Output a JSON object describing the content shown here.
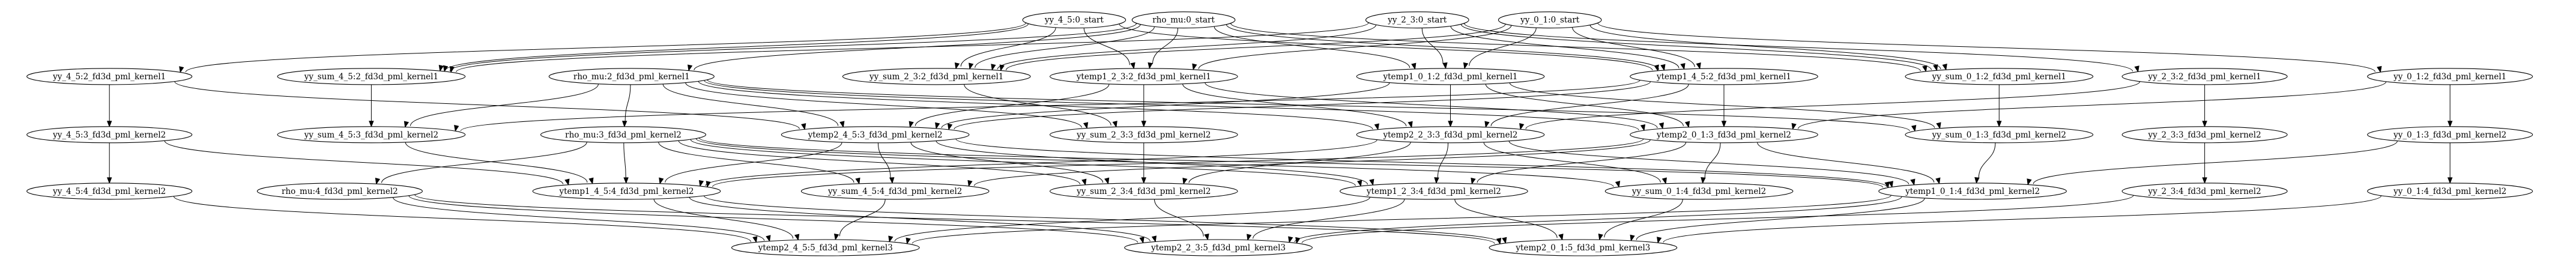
{
  "graph": {
    "nodes": [
      {
        "id": "yy_4_5_0_start",
        "label": "yy_4_5:0_start"
      },
      {
        "id": "rho_mu_0_start",
        "label": "rho_mu:0_start"
      },
      {
        "id": "yy_2_3_0_start",
        "label": "yy_2_3:0_start"
      },
      {
        "id": "yy_0_1_0_start",
        "label": "yy_0_1:0_start"
      },
      {
        "id": "yy_4_5_2",
        "label": "yy_4_5:2_fd3d_pml_kernel1"
      },
      {
        "id": "yy_sum_4_5_2",
        "label": "yy_sum_4_5:2_fd3d_pml_kernel1"
      },
      {
        "id": "rho_mu_2",
        "label": "rho_mu:2_fd3d_pml_kernel1"
      },
      {
        "id": "yy_sum_2_3_2",
        "label": "yy_sum_2_3:2_fd3d_pml_kernel1"
      },
      {
        "id": "ytemp1_2_3_2",
        "label": "ytemp1_2_3:2_fd3d_pml_kernel1"
      },
      {
        "id": "ytemp1_0_1_2",
        "label": "ytemp1_0_1:2_fd3d_pml_kernel1"
      },
      {
        "id": "ytemp1_4_5_2",
        "label": "ytemp1_4_5:2_fd3d_pml_kernel1"
      },
      {
        "id": "yy_sum_0_1_2",
        "label": "yy_sum_0_1:2_fd3d_pml_kernel1"
      },
      {
        "id": "yy_2_3_2",
        "label": "yy_2_3:2_fd3d_pml_kernel1"
      },
      {
        "id": "yy_0_1_2",
        "label": "yy_0_1:2_fd3d_pml_kernel1"
      },
      {
        "id": "yy_4_5_3",
        "label": "yy_4_5:3_fd3d_pml_kernel2"
      },
      {
        "id": "yy_sum_4_5_3",
        "label": "yy_sum_4_5:3_fd3d_pml_kernel2"
      },
      {
        "id": "rho_mu_3",
        "label": "rho_mu:3_fd3d_pml_kernel2"
      },
      {
        "id": "ytemp2_4_5_3",
        "label": "ytemp2_4_5:3_fd3d_pml_kernel2"
      },
      {
        "id": "yy_sum_2_3_3",
        "label": "yy_sum_2_3:3_fd3d_pml_kernel2"
      },
      {
        "id": "ytemp2_2_3_3",
        "label": "ytemp2_2_3:3_fd3d_pml_kernel2"
      },
      {
        "id": "ytemp2_0_1_3",
        "label": "ytemp2_0_1:3_fd3d_pml_kernel2"
      },
      {
        "id": "yy_sum_0_1_3",
        "label": "yy_sum_0_1:3_fd3d_pml_kernel2"
      },
      {
        "id": "yy_2_3_3",
        "label": "yy_2_3:3_fd3d_pml_kernel2"
      },
      {
        "id": "yy_0_1_3",
        "label": "yy_0_1:3_fd3d_pml_kernel2"
      },
      {
        "id": "yy_4_5_4",
        "label": "yy_4_5:4_fd3d_pml_kernel2"
      },
      {
        "id": "rho_mu_4",
        "label": "rho_mu:4_fd3d_pml_kernel2"
      },
      {
        "id": "ytemp1_4_5_4",
        "label": "ytemp1_4_5:4_fd3d_pml_kernel2"
      },
      {
        "id": "yy_sum_4_5_4",
        "label": "yy_sum_4_5:4_fd3d_pml_kernel2"
      },
      {
        "id": "yy_sum_2_3_4",
        "label": "yy_sum_2_3:4_fd3d_pml_kernel2"
      },
      {
        "id": "ytemp1_2_3_4",
        "label": "ytemp1_2_3:4_fd3d_pml_kernel2"
      },
      {
        "id": "yy_sum_0_1_4",
        "label": "yy_sum_0_1:4_fd3d_pml_kernel2"
      },
      {
        "id": "ytemp1_0_1_4",
        "label": "ytemp1_0_1:4_fd3d_pml_kernel2"
      },
      {
        "id": "yy_2_3_4",
        "label": "yy_2_3:4_fd3d_pml_kernel2"
      },
      {
        "id": "yy_0_1_4",
        "label": "yy_0_1:4_fd3d_pml_kernel2"
      },
      {
        "id": "ytemp2_4_5_5",
        "label": "ytemp2_4_5:5_fd3d_pml_kernel3"
      },
      {
        "id": "ytemp2_2_3_5",
        "label": "ytemp2_2_3:5_fd3d_pml_kernel3"
      },
      {
        "id": "ytemp2_0_1_5",
        "label": "ytemp2_0_1:5_fd3d_pml_kernel3"
      }
    ],
    "edges": [
      [
        "yy_4_5_0_start",
        "yy_4_5_2"
      ],
      [
        "yy_4_5_0_start",
        "yy_sum_4_5_2"
      ],
      [
        "yy_4_5_0_start",
        "ytemp1_4_5_2"
      ],
      [
        "yy_4_5_0_start",
        "ytemp1_2_3_2"
      ],
      [
        "yy_4_5_0_start",
        "yy_sum_2_3_2"
      ],
      [
        "rho_mu_0_start",
        "rho_mu_2"
      ],
      [
        "rho_mu_0_start",
        "yy_sum_4_5_2"
      ],
      [
        "rho_mu_0_start",
        "yy_sum_2_3_2"
      ],
      [
        "rho_mu_0_start",
        "ytemp1_2_3_2"
      ],
      [
        "rho_mu_0_start",
        "ytemp1_0_1_2"
      ],
      [
        "rho_mu_0_start",
        "ytemp1_4_5_2"
      ],
      [
        "rho_mu_0_start",
        "yy_sum_0_1_2"
      ],
      [
        "yy_2_3_0_start",
        "yy_sum_4_5_2"
      ],
      [
        "yy_2_3_0_start",
        "yy_sum_2_3_2"
      ],
      [
        "yy_2_3_0_start",
        "ytemp1_0_1_2"
      ],
      [
        "yy_2_3_0_start",
        "ytemp1_4_5_2"
      ],
      [
        "yy_2_3_0_start",
        "yy_sum_0_1_2"
      ],
      [
        "yy_2_3_0_start",
        "yy_2_3_2"
      ],
      [
        "yy_0_1_0_start",
        "yy_sum_2_3_2"
      ],
      [
        "yy_0_1_0_start",
        "ytemp1_2_3_2"
      ],
      [
        "yy_0_1_0_start",
        "ytemp1_0_1_2"
      ],
      [
        "yy_0_1_0_start",
        "ytemp1_4_5_2"
      ],
      [
        "yy_0_1_0_start",
        "yy_sum_0_1_2"
      ],
      [
        "yy_0_1_0_start",
        "yy_0_1_2"
      ],
      [
        "yy_4_5_2",
        "yy_4_5_3"
      ],
      [
        "yy_4_5_2",
        "ytemp2_4_5_3"
      ],
      [
        "yy_sum_4_5_2",
        "yy_sum_4_5_3"
      ],
      [
        "rho_mu_2",
        "rho_mu_3"
      ],
      [
        "rho_mu_2",
        "yy_sum_4_5_3"
      ],
      [
        "rho_mu_2",
        "ytemp2_4_5_3"
      ],
      [
        "rho_mu_2",
        "yy_sum_2_3_3"
      ],
      [
        "rho_mu_2",
        "ytemp2_2_3_3"
      ],
      [
        "rho_mu_2",
        "ytemp2_0_1_3"
      ],
      [
        "rho_mu_2",
        "yy_sum_0_1_3"
      ],
      [
        "yy_sum_2_3_2",
        "yy_sum_2_3_3"
      ],
      [
        "ytemp1_2_3_2",
        "ytemp2_4_5_3"
      ],
      [
        "ytemp1_2_3_2",
        "yy_sum_2_3_3"
      ],
      [
        "ytemp1_2_3_2",
        "ytemp2_2_3_3"
      ],
      [
        "ytemp1_2_3_2",
        "ytemp2_0_1_3"
      ],
      [
        "ytemp1_0_1_2",
        "ytemp2_4_5_3"
      ],
      [
        "ytemp1_0_1_2",
        "ytemp2_2_3_3"
      ],
      [
        "ytemp1_0_1_2",
        "ytemp2_0_1_3"
      ],
      [
        "ytemp1_0_1_2",
        "yy_sum_0_1_3"
      ],
      [
        "ytemp1_4_5_2",
        "yy_sum_4_5_3"
      ],
      [
        "ytemp1_4_5_2",
        "ytemp2_4_5_3"
      ],
      [
        "ytemp1_4_5_2",
        "ytemp2_2_3_3"
      ],
      [
        "ytemp1_4_5_2",
        "ytemp2_0_1_3"
      ],
      [
        "yy_sum_0_1_2",
        "yy_sum_0_1_3"
      ],
      [
        "yy_2_3_2",
        "ytemp2_2_3_3"
      ],
      [
        "yy_2_3_2",
        "yy_2_3_3"
      ],
      [
        "yy_0_1_2",
        "ytemp2_0_1_3"
      ],
      [
        "yy_0_1_2",
        "yy_0_1_3"
      ],
      [
        "yy_4_5_3",
        "yy_4_5_4"
      ],
      [
        "yy_4_5_3",
        "ytemp1_4_5_4"
      ],
      [
        "yy_sum_4_5_3",
        "ytemp1_4_5_4"
      ],
      [
        "rho_mu_3",
        "rho_mu_4"
      ],
      [
        "rho_mu_3",
        "ytemp1_4_5_4"
      ],
      [
        "rho_mu_3",
        "yy_sum_4_5_4"
      ],
      [
        "rho_mu_3",
        "yy_sum_2_3_4"
      ],
      [
        "rho_mu_3",
        "ytemp1_2_3_4"
      ],
      [
        "rho_mu_3",
        "yy_sum_0_1_4"
      ],
      [
        "rho_mu_3",
        "ytemp1_0_1_4"
      ],
      [
        "ytemp2_4_5_3",
        "ytemp1_4_5_4"
      ],
      [
        "ytemp2_4_5_3",
        "yy_sum_4_5_4"
      ],
      [
        "ytemp2_4_5_3",
        "yy_sum_2_3_4"
      ],
      [
        "ytemp2_4_5_3",
        "ytemp1_2_3_4"
      ],
      [
        "ytemp2_4_5_3",
        "ytemp1_0_1_4"
      ],
      [
        "yy_sum_2_3_3",
        "yy_sum_2_3_4"
      ],
      [
        "ytemp2_2_3_3",
        "ytemp1_4_5_4"
      ],
      [
        "ytemp2_2_3_3",
        "yy_sum_2_3_4"
      ],
      [
        "ytemp2_2_3_3",
        "ytemp1_2_3_4"
      ],
      [
        "ytemp2_2_3_3",
        "yy_sum_0_1_4"
      ],
      [
        "ytemp2_2_3_3",
        "ytemp1_0_1_4"
      ],
      [
        "ytemp2_0_1_3",
        "ytemp1_4_5_4"
      ],
      [
        "ytemp2_0_1_3",
        "yy_sum_4_5_4"
      ],
      [
        "ytemp2_0_1_3",
        "ytemp1_2_3_4"
      ],
      [
        "ytemp2_0_1_3",
        "yy_sum_0_1_4"
      ],
      [
        "ytemp2_0_1_3",
        "ytemp1_0_1_4"
      ],
      [
        "yy_sum_0_1_3",
        "ytemp1_0_1_4"
      ],
      [
        "yy_2_3_3",
        "yy_2_3_4"
      ],
      [
        "yy_0_1_3",
        "ytemp1_0_1_4"
      ],
      [
        "yy_0_1_3",
        "yy_0_1_4"
      ],
      [
        "yy_4_5_4",
        "ytemp2_4_5_5"
      ],
      [
        "rho_mu_4",
        "ytemp2_4_5_5"
      ],
      [
        "rho_mu_4",
        "ytemp2_2_3_5"
      ],
      [
        "rho_mu_4",
        "ytemp2_0_1_5"
      ],
      [
        "ytemp1_4_5_4",
        "ytemp2_4_5_5"
      ],
      [
        "ytemp1_4_5_4",
        "ytemp2_2_3_5"
      ],
      [
        "ytemp1_4_5_4",
        "ytemp2_0_1_5"
      ],
      [
        "yy_sum_4_5_4",
        "ytemp2_4_5_5"
      ],
      [
        "yy_sum_2_3_4",
        "ytemp2_2_3_5"
      ],
      [
        "ytemp1_2_3_4",
        "ytemp2_4_5_5"
      ],
      [
        "ytemp1_2_3_4",
        "ytemp2_2_3_5"
      ],
      [
        "ytemp1_2_3_4",
        "ytemp2_0_1_5"
      ],
      [
        "yy_sum_0_1_4",
        "ytemp2_0_1_5"
      ],
      [
        "ytemp1_0_1_4",
        "ytemp2_4_5_5"
      ],
      [
        "ytemp1_0_1_4",
        "ytemp2_2_3_5"
      ],
      [
        "ytemp1_0_1_4",
        "ytemp2_0_1_5"
      ],
      [
        "yy_2_3_4",
        "ytemp2_2_3_5"
      ],
      [
        "yy_0_1_4",
        "ytemp2_0_1_5"
      ]
    ]
  }
}
